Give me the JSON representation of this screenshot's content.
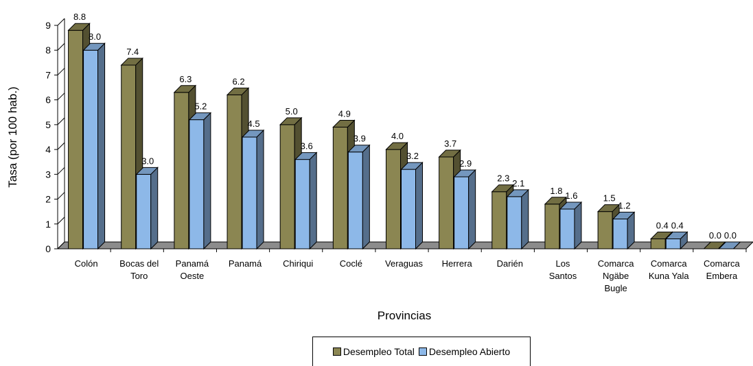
{
  "chart_data": {
    "type": "bar",
    "title": "",
    "xlabel": "Provincias",
    "ylabel": "Tasa (por 100 hab.)",
    "ylim": [
      0,
      9
    ],
    "yticks": [
      "0",
      "1",
      "2",
      "3",
      "4",
      "5",
      "6",
      "7",
      "8",
      "9"
    ],
    "categories": [
      [
        "Colón"
      ],
      [
        "Bocas del",
        "Toro"
      ],
      [
        "Panamá",
        "Oeste"
      ],
      [
        "Panamá"
      ],
      [
        "Chiriqui"
      ],
      [
        "Coclé"
      ],
      [
        "Veraguas"
      ],
      [
        "Herrera"
      ],
      [
        "Darién"
      ],
      [
        "Los",
        "Santos"
      ],
      [
        "Comarca",
        "Ngäbe",
        "Bugle"
      ],
      [
        "Comarca",
        "Kuna Yala"
      ],
      [
        "Comarca",
        "Embera"
      ]
    ],
    "series": [
      {
        "name": "Desempleo Total",
        "color": "#8B8652",
        "values": [
          8.8,
          7.4,
          6.3,
          6.2,
          5.0,
          4.9,
          4.0,
          3.7,
          2.3,
          1.8,
          1.5,
          0.4,
          0.0
        ],
        "labels": [
          "8.8",
          "7.4",
          "6.3",
          "6.2",
          "5.0",
          "4.9",
          "4.0",
          "3.7",
          "2.3",
          "1.8",
          "1.5",
          "0.4",
          "0.0"
        ]
      },
      {
        "name": "Desempleo Abierto",
        "color": "#8DB8E8",
        "values": [
          8.0,
          3.0,
          5.2,
          4.5,
          3.6,
          3.9,
          3.2,
          2.9,
          2.1,
          1.6,
          1.2,
          0.4,
          0.0
        ],
        "labels": [
          "8.0",
          "3.0",
          "5.2",
          "4.5",
          "3.6",
          "3.9",
          "3.2",
          "2.9",
          "2.1",
          "1.6",
          "1.2",
          "0.4",
          "0.0"
        ]
      }
    ],
    "legend_position": "bottom",
    "grid": false,
    "floor_color": "#8C8C8C"
  }
}
